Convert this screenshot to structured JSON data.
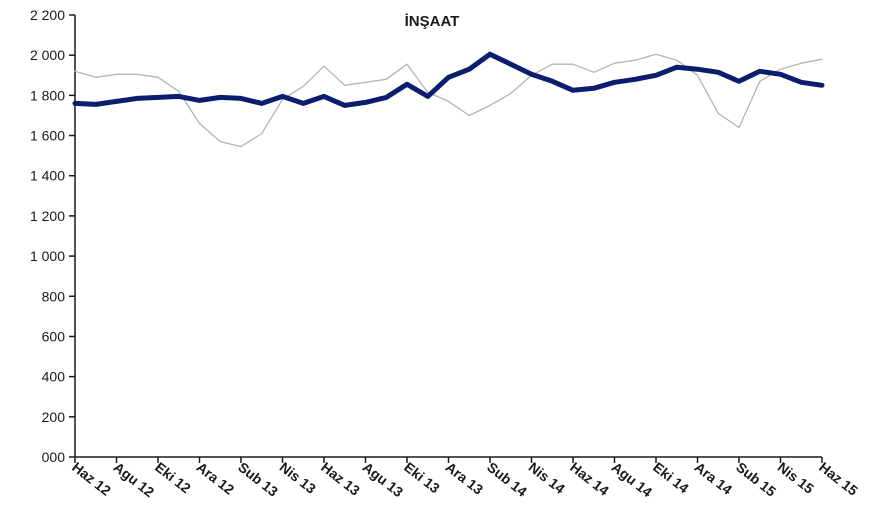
{
  "chart_data": {
    "type": "line",
    "title": "İNŞAAT",
    "xlabel": "",
    "ylabel": "",
    "ylim": [
      0,
      2200
    ],
    "yticks": [
      0,
      200,
      400,
      600,
      800,
      1000,
      1200,
      1400,
      1600,
      1800,
      2000,
      2200
    ],
    "ytick_labels": [
      "000",
      "200",
      "400",
      "600",
      "800",
      "1 000",
      "1 200",
      "1 400",
      "1 600",
      "1 800",
      "2 000",
      "2 200"
    ],
    "x_tick_labels": [
      "Haz 12",
      "Agu 12",
      "Eki 12",
      "Ara 12",
      "Sub 13",
      "Nis 13",
      "Haz 13",
      "Agu 13",
      "Eki 13",
      "Ara 13",
      "Sub 14",
      "Nis 14",
      "Haz 14",
      "Agu 14",
      "Eki 14",
      "Ara 14",
      "Sub 15",
      "Nis 15",
      "Haz 15"
    ],
    "grid": false,
    "legend": "none",
    "series": [
      {
        "style": "thin",
        "color": "#b4b4b4",
        "values": [
          1920,
          1890,
          1905,
          1905,
          1890,
          1820,
          1660,
          1570,
          1545,
          1610,
          1780,
          1845,
          1945,
          1850,
          1865,
          1880,
          1955,
          1815,
          1770,
          1700,
          1750,
          1810,
          1900,
          1955,
          1955,
          1915,
          1960,
          1975,
          2005,
          1975,
          1900,
          1710,
          1640,
          1870,
          1930,
          1960,
          1980
        ]
      },
      {
        "style": "thick",
        "color": "#0a1d6e",
        "values": [
          1760,
          1755,
          1770,
          1785,
          1790,
          1795,
          1775,
          1790,
          1785,
          1760,
          1795,
          1760,
          1795,
          1750,
          1765,
          1790,
          1855,
          1795,
          1890,
          1930,
          2005,
          1955,
          1905,
          1870,
          1825,
          1835,
          1865,
          1880,
          1900,
          1940,
          1930,
          1915,
          1870,
          1920,
          1905,
          1865,
          1850
        ]
      }
    ]
  }
}
